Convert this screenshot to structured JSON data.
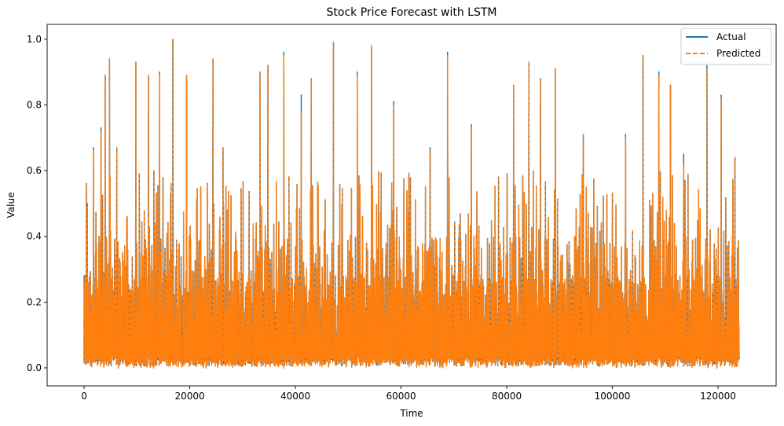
{
  "chart_data": {
    "type": "line",
    "title": "Stock Price Forecast with LSTM",
    "xlabel": "Time",
    "ylabel": "Value",
    "xlim": [
      -7000,
      131000
    ],
    "ylim": [
      -0.055,
      1.045
    ],
    "xticks": [
      0,
      20000,
      40000,
      60000,
      80000,
      100000,
      120000
    ],
    "yticks": [
      0.0,
      0.2,
      0.4,
      0.6,
      0.8,
      1.0
    ],
    "xtick_labels": [
      "0",
      "20000",
      "40000",
      "60000",
      "80000",
      "100000",
      "120000"
    ],
    "ytick_labels": [
      "0.0",
      "0.2",
      "0.4",
      "0.6",
      "0.8",
      "1.0"
    ],
    "x_range": [
      0,
      124000
    ],
    "grid": false,
    "legend_position": "top-right",
    "series": [
      {
        "name": "Actual",
        "color": "#1f77b4",
        "line_style": "solid",
        "peaks": [
          [
            0,
            0.28
          ],
          [
            600,
            0.5
          ],
          [
            1800,
            0.67
          ],
          [
            3200,
            0.73
          ],
          [
            4000,
            0.89
          ],
          [
            4800,
            0.94
          ],
          [
            6200,
            0.67
          ],
          [
            9800,
            0.93
          ],
          [
            12200,
            0.89
          ],
          [
            14300,
            0.9
          ],
          [
            16800,
            1.0
          ],
          [
            19400,
            0.89
          ],
          [
            24400,
            0.94
          ],
          [
            26300,
            0.67
          ],
          [
            33300,
            0.9
          ],
          [
            34800,
            0.92
          ],
          [
            37800,
            0.96
          ],
          [
            41100,
            0.83
          ],
          [
            43000,
            0.88
          ],
          [
            47200,
            0.99
          ],
          [
            51700,
            0.9
          ],
          [
            54400,
            0.98
          ],
          [
            58600,
            0.81
          ],
          [
            65500,
            0.67
          ],
          [
            68800,
            0.96
          ],
          [
            73300,
            0.74
          ],
          [
            81300,
            0.86
          ],
          [
            84200,
            0.93
          ],
          [
            86400,
            0.88
          ],
          [
            89200,
            0.91
          ],
          [
            94500,
            0.71
          ],
          [
            102500,
            0.71
          ],
          [
            105800,
            0.95
          ],
          [
            108800,
            0.9
          ],
          [
            111000,
            0.86
          ],
          [
            113500,
            0.65
          ],
          [
            117900,
            0.92
          ],
          [
            120600,
            0.83
          ],
          [
            123200,
            0.64
          ]
        ]
      },
      {
        "name": "Predicted",
        "color": "#ff7f0e",
        "line_style": "dashed",
        "peaks": [
          [
            0,
            0.27
          ],
          [
            600,
            0.49
          ],
          [
            1800,
            0.66
          ],
          [
            3200,
            0.72
          ],
          [
            4000,
            0.89
          ],
          [
            4800,
            0.94
          ],
          [
            6200,
            0.67
          ],
          [
            9800,
            0.93
          ],
          [
            12200,
            0.89
          ],
          [
            14300,
            0.89
          ],
          [
            16800,
            1.0
          ],
          [
            19400,
            0.89
          ],
          [
            24400,
            0.94
          ],
          [
            26300,
            0.67
          ],
          [
            33300,
            0.9
          ],
          [
            34800,
            0.92
          ],
          [
            37800,
            0.95
          ],
          [
            41100,
            0.78
          ],
          [
            43000,
            0.88
          ],
          [
            47200,
            0.99
          ],
          [
            51700,
            0.89
          ],
          [
            54400,
            0.98
          ],
          [
            58600,
            0.8
          ],
          [
            65500,
            0.66
          ],
          [
            68800,
            0.95
          ],
          [
            73300,
            0.73
          ],
          [
            81300,
            0.86
          ],
          [
            84200,
            0.93
          ],
          [
            86400,
            0.88
          ],
          [
            89200,
            0.91
          ],
          [
            94500,
            0.71
          ],
          [
            102500,
            0.7
          ],
          [
            105800,
            0.95
          ],
          [
            108800,
            0.89
          ],
          [
            111000,
            0.86
          ],
          [
            113500,
            0.62
          ],
          [
            117900,
            0.91
          ],
          [
            120600,
            0.82
          ],
          [
            123200,
            0.64
          ]
        ]
      }
    ]
  }
}
